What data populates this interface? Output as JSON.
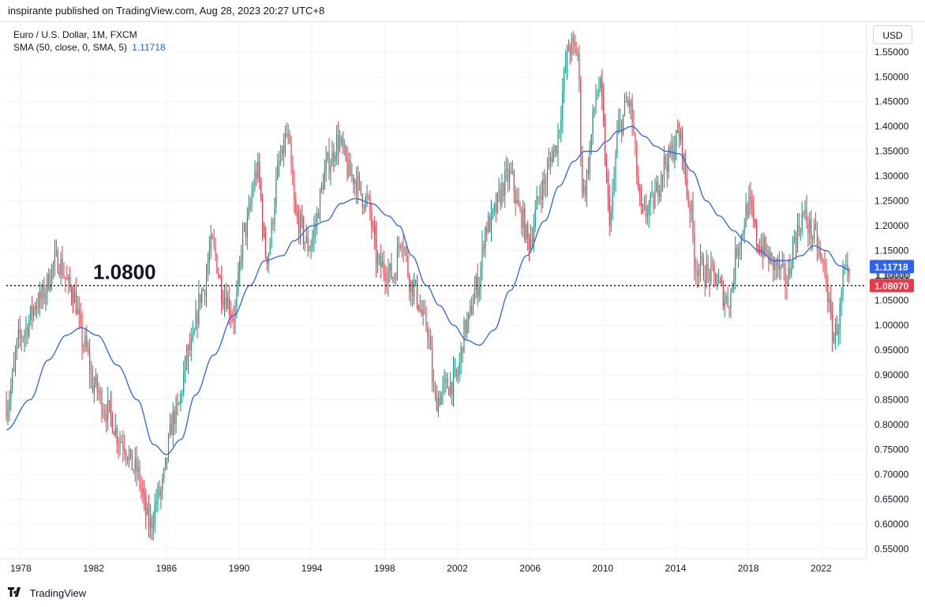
{
  "header": {
    "publish_line": "inspirante published on TradingView.com, Aug 28, 2023 20:27 UTC+8"
  },
  "legend": {
    "symbol_line": "Euro / U.S. Dollar, 1M, FXCM",
    "sma_label": "SMA (50, close, 0, SMA, 5)",
    "sma_value": "1.11718"
  },
  "currency_button": "USD",
  "footer": {
    "brand": "TradingView"
  },
  "colors": {
    "up": "#089981",
    "down": "#f23645",
    "sma": "#2962ff",
    "grid": "#f0f3fa",
    "text": "#131722"
  },
  "chart_data": {
    "type": "candlestick",
    "title": "Euro / U.S. Dollar, 1M, FXCM",
    "y_axis_labels": [
      "1.55000",
      "1.50000",
      "1.45000",
      "1.40000",
      "1.35000",
      "1.30000",
      "1.25000",
      "1.20000",
      "1.15000",
      "1.10000",
      "1.05000",
      "1.00000",
      "0.95000",
      "0.90000",
      "0.85000",
      "0.80000",
      "0.75000",
      "0.70000",
      "0.65000",
      "0.60000",
      "0.55000"
    ],
    "y_ticks": [
      1.55,
      1.5,
      1.45,
      1.4,
      1.35,
      1.3,
      1.25,
      1.2,
      1.15,
      1.1,
      1.05,
      1.0,
      0.95,
      0.9,
      0.85,
      0.8,
      0.75,
      0.7,
      0.65,
      0.6,
      0.55
    ],
    "x_axis_labels": [
      "1978",
      "1982",
      "1986",
      "1990",
      "1994",
      "1998",
      "2002",
      "2006",
      "2010",
      "2014",
      "2018",
      "2022"
    ],
    "x_ticks": [
      1978,
      1982,
      1986,
      1990,
      1994,
      1998,
      2002,
      2006,
      2010,
      2014,
      2018,
      2022
    ],
    "ylim": [
      0.53,
      1.61
    ],
    "xlim": [
      1977.2,
      2024.5
    ],
    "grid": true,
    "price_anchors": [
      [
        1977.2,
        0.84
      ],
      [
        1978.0,
        0.98
      ],
      [
        1979.0,
        1.05
      ],
      [
        1980.0,
        1.13
      ],
      [
        1980.8,
        1.07
      ],
      [
        1981.5,
        0.96
      ],
      [
        1982.0,
        0.88
      ],
      [
        1982.7,
        0.83
      ],
      [
        1983.5,
        0.77
      ],
      [
        1984.3,
        0.71
      ],
      [
        1985.1,
        0.6
      ],
      [
        1985.6,
        0.66
      ],
      [
        1986.5,
        0.82
      ],
      [
        1987.3,
        0.95
      ],
      [
        1988.0,
        1.07
      ],
      [
        1988.5,
        1.16
      ],
      [
        1989.2,
        1.06
      ],
      [
        1989.7,
        1.02
      ],
      [
        1990.3,
        1.19
      ],
      [
        1991.0,
        1.31
      ],
      [
        1991.5,
        1.14
      ],
      [
        1992.3,
        1.33
      ],
      [
        1992.6,
        1.38
      ],
      [
        1993.2,
        1.21
      ],
      [
        1993.8,
        1.16
      ],
      [
        1995.0,
        1.33
      ],
      [
        1995.4,
        1.37
      ],
      [
        1996.2,
        1.3
      ],
      [
        1997.0,
        1.25
      ],
      [
        1997.7,
        1.12
      ],
      [
        1998.5,
        1.1
      ],
      [
        1998.9,
        1.18
      ],
      [
        1999.5,
        1.08
      ],
      [
        2000.3,
        1.0
      ],
      [
        2000.8,
        0.85
      ],
      [
        2001.5,
        0.88
      ],
      [
        2001.9,
        0.89
      ],
      [
        2002.5,
        1.0
      ],
      [
        2003.1,
        1.08
      ],
      [
        2003.6,
        1.2
      ],
      [
        2004.9,
        1.3
      ],
      [
        2005.5,
        1.22
      ],
      [
        2005.9,
        1.17
      ],
      [
        2006.7,
        1.28
      ],
      [
        2007.3,
        1.35
      ],
      [
        2008.2,
        1.56
      ],
      [
        2008.6,
        1.55
      ],
      [
        2008.9,
        1.27
      ],
      [
        2009.8,
        1.48
      ],
      [
        2010.4,
        1.22
      ],
      [
        2010.9,
        1.4
      ],
      [
        2011.4,
        1.45
      ],
      [
        2012.2,
        1.22
      ],
      [
        2012.6,
        1.24
      ],
      [
        2013.5,
        1.33
      ],
      [
        2014.2,
        1.38
      ],
      [
        2014.8,
        1.24
      ],
      [
        2015.1,
        1.12
      ],
      [
        2016.0,
        1.1
      ],
      [
        2016.9,
        1.05
      ],
      [
        2017.5,
        1.17
      ],
      [
        2018.0,
        1.24
      ],
      [
        2018.6,
        1.16
      ],
      [
        2019.5,
        1.12
      ],
      [
        2020.1,
        1.09
      ],
      [
        2020.6,
        1.18
      ],
      [
        2021.0,
        1.22
      ],
      [
        2021.6,
        1.18
      ],
      [
        2022.1,
        1.12
      ],
      [
        2022.7,
        0.98
      ],
      [
        2022.9,
        1.0
      ],
      [
        2023.3,
        1.1
      ],
      [
        2023.6,
        1.08
      ]
    ],
    "sma_anchors": [
      [
        1977.2,
        0.79
      ],
      [
        1978.5,
        0.85
      ],
      [
        1979.5,
        0.93
      ],
      [
        1980.5,
        0.98
      ],
      [
        1981.3,
        0.995
      ],
      [
        1982.2,
        0.98
      ],
      [
        1983.3,
        0.92
      ],
      [
        1984.4,
        0.85
      ],
      [
        1985.3,
        0.76
      ],
      [
        1986.0,
        0.74
      ],
      [
        1986.8,
        0.77
      ],
      [
        1987.6,
        0.86
      ],
      [
        1988.6,
        0.94
      ],
      [
        1989.7,
        1.02
      ],
      [
        1990.6,
        1.08
      ],
      [
        1991.4,
        1.13
      ],
      [
        1992.4,
        1.14
      ],
      [
        1993.0,
        1.17
      ],
      [
        1994.0,
        1.2
      ],
      [
        1994.8,
        1.21
      ],
      [
        1995.6,
        1.245
      ],
      [
        1996.4,
        1.255
      ],
      [
        1997.3,
        1.245
      ],
      [
        1998.2,
        1.22
      ],
      [
        1998.8,
        1.2
      ],
      [
        1999.5,
        1.14
      ],
      [
        2000.3,
        1.08
      ],
      [
        2001.0,
        1.04
      ],
      [
        2001.8,
        1.0
      ],
      [
        2002.5,
        0.97
      ],
      [
        2003.2,
        0.96
      ],
      [
        2004.0,
        0.99
      ],
      [
        2004.9,
        1.07
      ],
      [
        2005.8,
        1.14
      ],
      [
        2006.8,
        1.21
      ],
      [
        2007.6,
        1.28
      ],
      [
        2008.4,
        1.33
      ],
      [
        2009.0,
        1.35
      ],
      [
        2009.6,
        1.35
      ],
      [
        2010.2,
        1.37
      ],
      [
        2010.8,
        1.39
      ],
      [
        2011.6,
        1.4
      ],
      [
        2012.3,
        1.38
      ],
      [
        2012.9,
        1.36
      ],
      [
        2013.5,
        1.35
      ],
      [
        2014.2,
        1.345
      ],
      [
        2014.9,
        1.31
      ],
      [
        2015.7,
        1.25
      ],
      [
        2016.4,
        1.22
      ],
      [
        2017.2,
        1.19
      ],
      [
        2017.8,
        1.17
      ],
      [
        2018.6,
        1.15
      ],
      [
        2019.4,
        1.13
      ],
      [
        2020.2,
        1.13
      ],
      [
        2020.9,
        1.14
      ],
      [
        2021.6,
        1.16
      ],
      [
        2022.3,
        1.15
      ],
      [
        2023.0,
        1.12
      ],
      [
        2023.6,
        1.11
      ]
    ],
    "horizontal_line": {
      "value": 1.08,
      "label": "1.0800",
      "style": "dotted"
    },
    "last_price": "1.08070",
    "sma_last": "1.11718",
    "hidden_label": "1.10000"
  }
}
